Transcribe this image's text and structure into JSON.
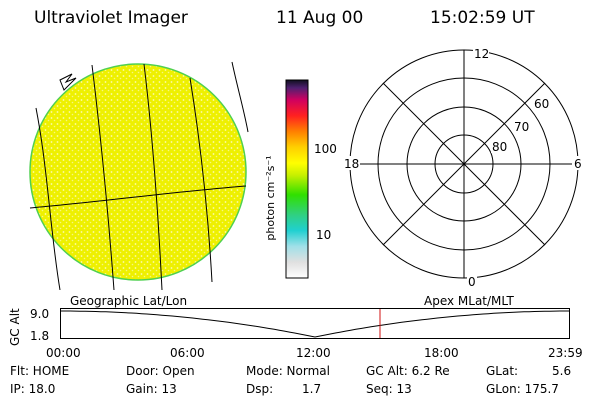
{
  "header": {
    "instrument": "Ultraviolet Imager",
    "date": "11 Aug 00",
    "time": "15:02:59 UT"
  },
  "colorbar": {
    "unit_label": "photon cm⁻²s⁻¹",
    "ticks": [
      "100",
      "10"
    ]
  },
  "polar_plot": {
    "mlt_labels": {
      "top": "12",
      "left": "18",
      "right": "6",
      "bottom": "0"
    },
    "lat_labels": [
      "60",
      "70",
      "80"
    ]
  },
  "timeline": {
    "left_label": "Geographic Lat/Lon",
    "right_label": "Apex MLat/MLT",
    "y_axis_label": "GC Alt",
    "y_ticks": [
      "9.0",
      "1.8"
    ],
    "x_ticks": [
      "00:00",
      "06:00",
      "12:00",
      "18:00",
      "23:59"
    ],
    "marker_time": "15:02:59",
    "altitude_curve_time_fraction_min": 0.5
  },
  "info": {
    "flt": "Flt: HOME",
    "ip": "IP: 18.0",
    "door": "Door: Open",
    "gain": "Gain: 13",
    "mode": "Mode: Normal",
    "dsp_label": "Dsp:",
    "dsp_value": "1.7",
    "gc_alt": "GC Alt: 6.2 Re",
    "seq": "Seq: 13",
    "glat_label": "GLat:",
    "glat_value": "5.6",
    "glon": "GLon: 175.7"
  },
  "colors": {
    "disk_fill": "#eef000",
    "disk_edge": "#4fd050",
    "marker": "#d01010"
  }
}
